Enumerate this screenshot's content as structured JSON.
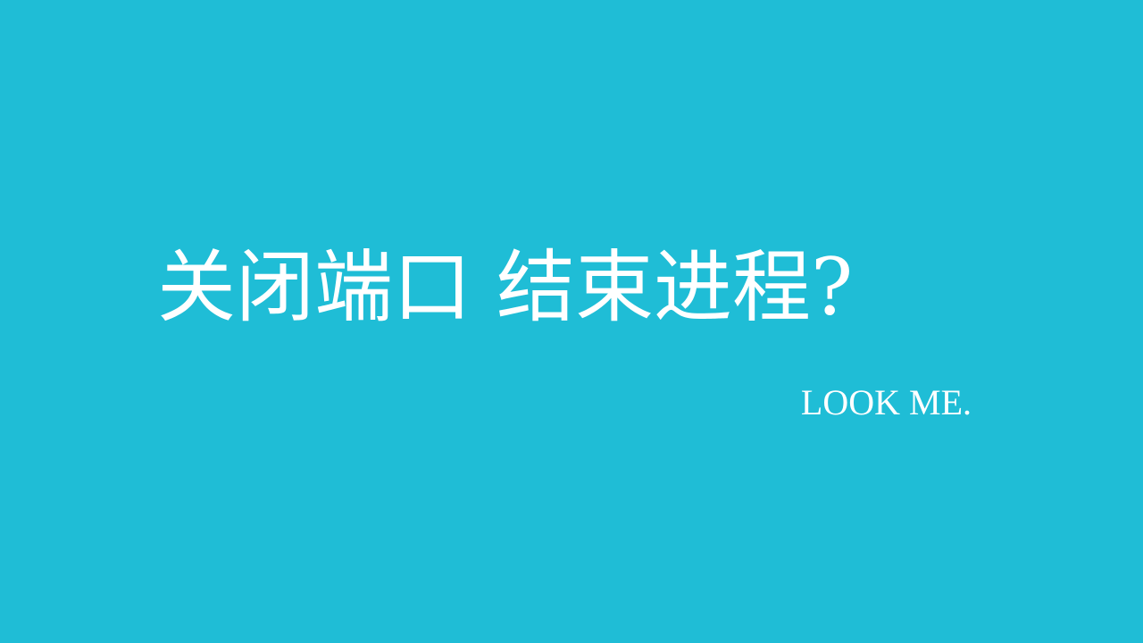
{
  "slide": {
    "background_color": "#1fbdd6",
    "text_color": "#ffffff",
    "title": "关闭端口 结束进程?",
    "subtitle": "LOOK ME."
  }
}
